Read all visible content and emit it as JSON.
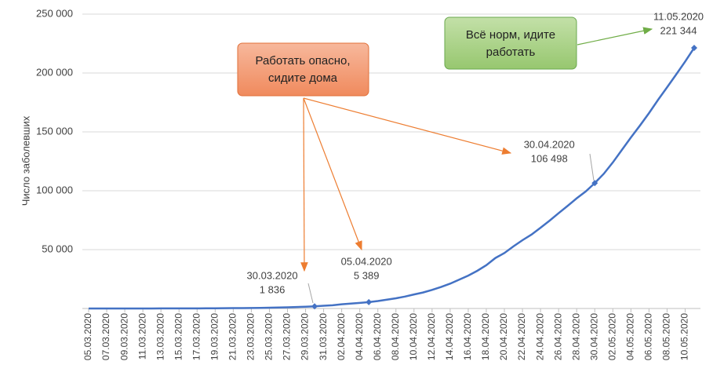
{
  "chart_data": {
    "type": "line",
    "y_label": "Число заболевших",
    "categories": [
      "05.03.2020",
      null,
      "07.03.2020",
      null,
      "09.03.2020",
      null,
      "11.03.2020",
      null,
      "13.03.2020",
      null,
      "15.03.2020",
      null,
      "17.03.2020",
      null,
      "19.03.2020",
      null,
      "21.03.2020",
      null,
      "23.03.2020",
      null,
      "25.03.2020",
      null,
      "27.03.2020",
      null,
      "29.03.2020",
      null,
      "31.03.2020",
      null,
      "02.04.2020",
      null,
      "04.04.2020",
      null,
      "06.04.2020",
      null,
      "08.04.2020",
      null,
      "10.04.2020",
      null,
      "12.04.2020",
      null,
      "14.04.2020",
      null,
      "16.04.2020",
      null,
      "18.04.2020",
      null,
      "20.04.2020",
      null,
      "22.04.2020",
      null,
      "24.04.2020",
      null,
      "26.04.2020",
      null,
      "28.04.2020",
      null,
      "30.04.2020",
      null,
      "02.05.2020",
      null,
      "04.05.2020",
      null,
      "06.05.2020",
      null,
      "08.05.2020",
      null,
      "10.05.2020",
      null
    ],
    "values": [
      4,
      10,
      14,
      17,
      17,
      20,
      28,
      34,
      45,
      59,
      63,
      90,
      114,
      147,
      199,
      253,
      306,
      367,
      438,
      495,
      658,
      840,
      1036,
      1264,
      1534,
      1836,
      2337,
      2777,
      3548,
      4149,
      4731,
      5389,
      6343,
      7497,
      8672,
      10131,
      11917,
      13584,
      15770,
      18328,
      21102,
      24490,
      27938,
      32008,
      36793,
      42853,
      47121,
      52763,
      57999,
      62773,
      68622,
      74588,
      80949,
      87147,
      93558,
      99399,
      106498,
      114431,
      124054,
      134687,
      145268,
      155370,
      165929,
      177160,
      187859,
      198676,
      209688,
      221344
    ],
    "value_labels": [
      null,
      null,
      null,
      null,
      null,
      null,
      null,
      null,
      null,
      null,
      null,
      null,
      null,
      null,
      null,
      null,
      null,
      null,
      null,
      null,
      null,
      null,
      null,
      null,
      null,
      "1 836",
      null,
      null,
      null,
      null,
      null,
      "5 389",
      null,
      null,
      null,
      null,
      null,
      null,
      null,
      null,
      null,
      null,
      null,
      null,
      null,
      null,
      null,
      null,
      null,
      null,
      null,
      null,
      null,
      null,
      null,
      null,
      "106 498",
      null,
      null,
      null,
      null,
      null,
      null,
      null,
      null,
      null,
      null,
      "221 344"
    ],
    "point_dates": [
      null,
      null,
      null,
      null,
      null,
      null,
      null,
      null,
      null,
      null,
      null,
      null,
      null,
      null,
      null,
      null,
      null,
      null,
      null,
      null,
      null,
      null,
      null,
      null,
      null,
      "30.03.2020",
      null,
      null,
      null,
      null,
      null,
      "05.04.2020",
      null,
      null,
      null,
      null,
      null,
      null,
      null,
      null,
      null,
      null,
      null,
      null,
      null,
      null,
      null,
      null,
      null,
      null,
      null,
      null,
      null,
      null,
      null,
      null,
      "30.04.2020",
      null,
      null,
      null,
      null,
      null,
      null,
      null,
      null,
      null,
      null,
      "11.05.2020"
    ],
    "color": "#4472c4",
    "ylim": [
      0,
      250000
    ],
    "yticks": [
      {
        "value": 50000,
        "label": "50 000"
      },
      {
        "value": 100000,
        "label": "100 000"
      },
      {
        "value": 150000,
        "label": "150 000"
      },
      {
        "value": 200000,
        "label": "200 000"
      },
      {
        "value": 250000,
        "label": "250 000"
      }
    ],
    "grid": true,
    "callouts": [
      {
        "lines": [
          "Работать опасно,",
          "сидите дома"
        ]
      },
      {
        "lines": [
          "Всё норм, идите",
          "работать"
        ]
      }
    ]
  }
}
